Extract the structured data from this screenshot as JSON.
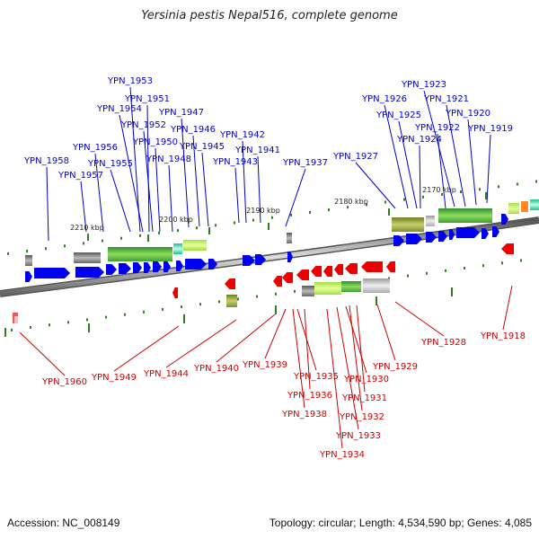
{
  "title": "Yersinia pestis Nepal516, complete genome",
  "accession": "Accession: NC_008149",
  "summary": "Topology: circular; Length: 4,534,590 bp; Genes: 4,085",
  "colors": {
    "forward_gene": "#0000ee",
    "reverse_gene": "#ee0000",
    "forward_label": "#0000cc",
    "reverse_label": "#cc0000",
    "backbone": "#777777",
    "tick": "#2f7f1f"
  },
  "scale_labels": [
    "2210 kbp",
    "2200 kbp",
    "2190 kbp",
    "2180 kbp",
    "2170 kbp"
  ],
  "forward_labels": [
    "YPN_1953",
    "YPN_1951",
    "YPN_1954",
    "YPN_1952",
    "YPN_1947",
    "YPN_1950",
    "YPN_1946",
    "YPN_1956",
    "YPN_1945",
    "YPN_1942",
    "YPN_1955",
    "YPN_1948",
    "YPN_1941",
    "YPN_1958",
    "YPN_1943",
    "YPN_1937",
    "YPN_1957",
    "YPN_1923",
    "YPN_1926",
    "YPN_1921",
    "YPN_1925",
    "YPN_1920",
    "YPN_1922",
    "YPN_1919",
    "YPN_1924",
    "YPN_1927"
  ],
  "reverse_labels": [
    "YPN_1960",
    "YPN_1949",
    "YPN_1944",
    "YPN_1940",
    "YPN_1939",
    "YPN_1935",
    "YPN_1936",
    "YPN_1938",
    "YPN_1930",
    "YPN_1931",
    "YPN_1932",
    "YPN_1933",
    "YPN_1934",
    "YPN_1929",
    "YPN_1928",
    "YPN_1918"
  ]
}
